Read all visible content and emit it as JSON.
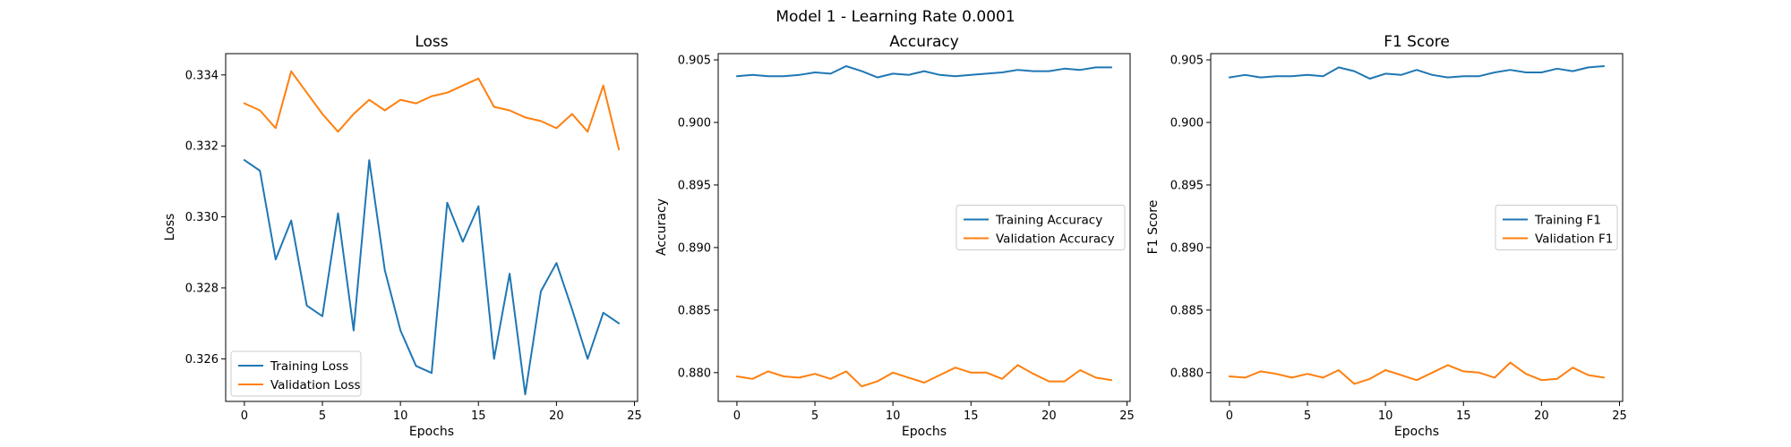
{
  "figure": {
    "title": "Model 1 - Learning Rate 0.0001"
  },
  "colors": {
    "training": "#1f77b4",
    "validation": "#ff7f0e"
  },
  "chart_data": [
    {
      "type": "line",
      "title": "Loss",
      "xlabel": "Epochs",
      "ylabel": "Loss",
      "xlim": [
        -1.2,
        25.2
      ],
      "ylim": [
        0.3248,
        0.3346
      ],
      "xticks": [
        0,
        5,
        10,
        15,
        20,
        25
      ],
      "yticks": [
        0.326,
        0.328,
        0.33,
        0.332,
        0.334
      ],
      "tick_decimals": 3,
      "legend_position": "lower-left",
      "x": [
        0,
        1,
        2,
        3,
        4,
        5,
        6,
        7,
        8,
        9,
        10,
        11,
        12,
        13,
        14,
        15,
        16,
        17,
        18,
        19,
        20,
        21,
        22,
        23,
        24
      ],
      "series": [
        {
          "name": "Training Loss",
          "color": "#1f77b4",
          "values": [
            0.3316,
            0.3313,
            0.3288,
            0.3299,
            0.3275,
            0.3272,
            0.3301,
            0.3268,
            0.3316,
            0.3285,
            0.3268,
            0.3258,
            0.3256,
            0.3304,
            0.3293,
            0.3303,
            0.326,
            0.3284,
            0.325,
            0.3279,
            0.3287,
            0.3274,
            0.326,
            0.3273,
            0.327
          ]
        },
        {
          "name": "Validation Loss",
          "color": "#ff7f0e",
          "values": [
            0.3332,
            0.333,
            0.3325,
            0.3341,
            0.3335,
            0.3329,
            0.3324,
            0.3329,
            0.3333,
            0.333,
            0.3333,
            0.3332,
            0.3334,
            0.3335,
            0.3337,
            0.3339,
            0.3331,
            0.333,
            0.3328,
            0.3327,
            0.3325,
            0.3329,
            0.3324,
            0.3337,
            0.3319
          ]
        }
      ]
    },
    {
      "type": "line",
      "title": "Accuracy",
      "xlabel": "Epochs",
      "ylabel": "Accuracy",
      "xlim": [
        -1.2,
        25.2
      ],
      "ylim": [
        0.8777,
        0.9055
      ],
      "xticks": [
        0,
        5,
        10,
        15,
        20,
        25
      ],
      "yticks": [
        0.88,
        0.885,
        0.89,
        0.895,
        0.9,
        0.905
      ],
      "tick_decimals": 3,
      "legend_position": "center-right",
      "x": [
        0,
        1,
        2,
        3,
        4,
        5,
        6,
        7,
        8,
        9,
        10,
        11,
        12,
        13,
        14,
        15,
        16,
        17,
        18,
        19,
        20,
        21,
        22,
        23,
        24
      ],
      "series": [
        {
          "name": "Training Accuracy",
          "color": "#1f77b4",
          "values": [
            0.9037,
            0.9038,
            0.9037,
            0.9037,
            0.9038,
            0.904,
            0.9039,
            0.9045,
            0.9041,
            0.9036,
            0.9039,
            0.9038,
            0.9041,
            0.9038,
            0.9037,
            0.9038,
            0.9039,
            0.904,
            0.9042,
            0.9041,
            0.9041,
            0.9043,
            0.9042,
            0.9044,
            0.9044
          ]
        },
        {
          "name": "Validation Accuracy",
          "color": "#ff7f0e",
          "values": [
            0.8797,
            0.8795,
            0.8801,
            0.8797,
            0.8796,
            0.8799,
            0.8795,
            0.8801,
            0.8789,
            0.8793,
            0.88,
            0.8796,
            0.8792,
            0.8798,
            0.8804,
            0.88,
            0.88,
            0.8795,
            0.8806,
            0.8799,
            0.8793,
            0.8793,
            0.8802,
            0.8796,
            0.8794
          ]
        }
      ]
    },
    {
      "type": "line",
      "title": "F1 Score",
      "xlabel": "Epochs",
      "ylabel": "F1 Score",
      "xlim": [
        -1.2,
        25.2
      ],
      "ylim": [
        0.8777,
        0.9055
      ],
      "xticks": [
        0,
        5,
        10,
        15,
        20,
        25
      ],
      "yticks": [
        0.88,
        0.885,
        0.89,
        0.895,
        0.9,
        0.905
      ],
      "tick_decimals": 3,
      "legend_position": "center-right",
      "x": [
        0,
        1,
        2,
        3,
        4,
        5,
        6,
        7,
        8,
        9,
        10,
        11,
        12,
        13,
        14,
        15,
        16,
        17,
        18,
        19,
        20,
        21,
        22,
        23,
        24
      ],
      "series": [
        {
          "name": "Training F1",
          "color": "#1f77b4",
          "values": [
            0.9036,
            0.9038,
            0.9036,
            0.9037,
            0.9037,
            0.9038,
            0.9037,
            0.9044,
            0.9041,
            0.9035,
            0.9039,
            0.9038,
            0.9042,
            0.9038,
            0.9036,
            0.9037,
            0.9037,
            0.904,
            0.9042,
            0.904,
            0.904,
            0.9043,
            0.9041,
            0.9044,
            0.9045
          ]
        },
        {
          "name": "Validation F1",
          "color": "#ff7f0e",
          "values": [
            0.8797,
            0.8796,
            0.8801,
            0.8799,
            0.8796,
            0.8799,
            0.8796,
            0.8802,
            0.8791,
            0.8795,
            0.8802,
            0.8798,
            0.8794,
            0.88,
            0.8806,
            0.8801,
            0.88,
            0.8796,
            0.8808,
            0.8799,
            0.8794,
            0.8795,
            0.8804,
            0.8798,
            0.8796
          ]
        }
      ]
    }
  ]
}
